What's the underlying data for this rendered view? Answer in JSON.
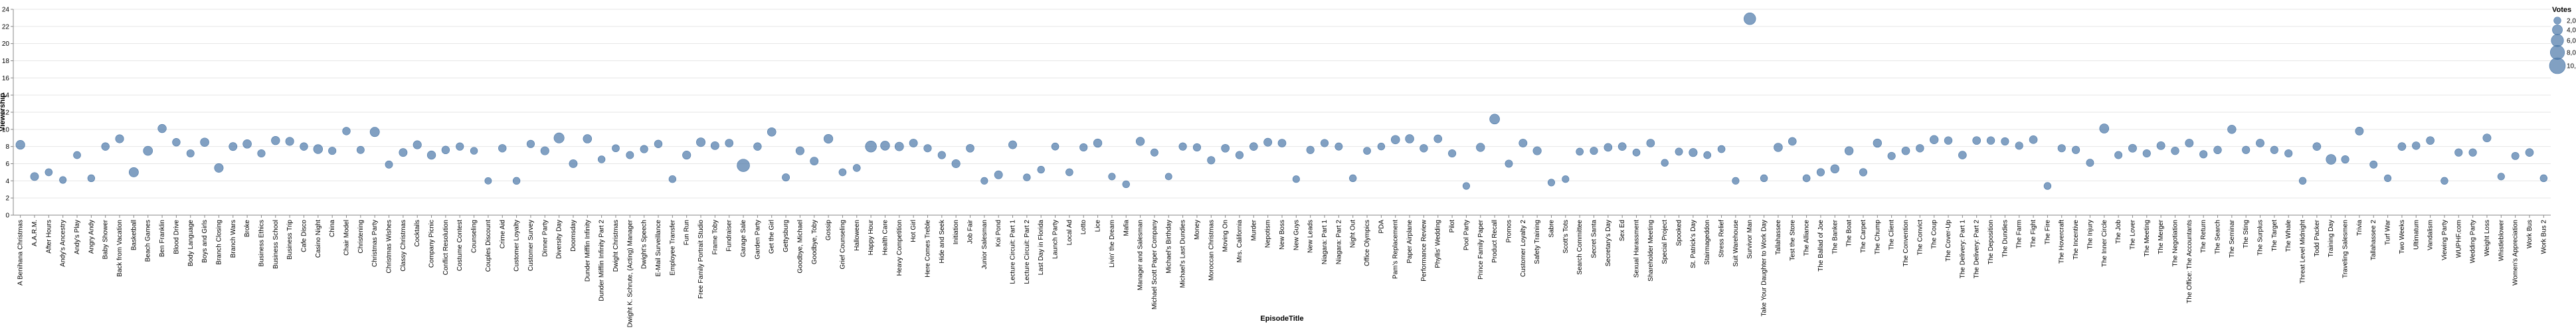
{
  "chart_data": {
    "type": "scatter",
    "xlabel": "EpisodeTitle",
    "ylabel": "Viewership",
    "ylim": [
      0,
      24
    ],
    "yticks": [
      0,
      2,
      4,
      6,
      8,
      10,
      12,
      14,
      16,
      18,
      20,
      22,
      24
    ],
    "grid": true,
    "point_color": "#4c78a8",
    "legend": {
      "title": "Votes",
      "placement": "top-right",
      "labels": [
        "2,000",
        "4,000",
        "6,000",
        "8,000",
        "10,000"
      ],
      "values": [
        2000,
        4000,
        6000,
        8000,
        10000
      ]
    },
    "points": [
      {
        "x": "A Benihana Christmas",
        "y": 8.2,
        "votes": 3200
      },
      {
        "x": "A.A.R.M.",
        "y": 4.5,
        "votes": 2600
      },
      {
        "x": "After Hours",
        "y": 5.0,
        "votes": 2100
      },
      {
        "x": "Andy's Ancestry",
        "y": 4.1,
        "votes": 1900
      },
      {
        "x": "Andy's Play",
        "y": 7.0,
        "votes": 2100
      },
      {
        "x": "Angry Andy",
        "y": 4.3,
        "votes": 2000
      },
      {
        "x": "Baby Shower",
        "y": 8.0,
        "votes": 2400
      },
      {
        "x": "Back from Vacation",
        "y": 8.9,
        "votes": 2700
      },
      {
        "x": "Basketball",
        "y": 5.0,
        "votes": 3500
      },
      {
        "x": "Beach Games",
        "y": 7.5,
        "votes": 3400
      },
      {
        "x": "Ben Franklin",
        "y": 10.1,
        "votes": 2800
      },
      {
        "x": "Blood Drive",
        "y": 8.5,
        "votes": 2400
      },
      {
        "x": "Body Language",
        "y": 7.2,
        "votes": 2200
      },
      {
        "x": "Boys and Girls",
        "y": 8.5,
        "votes": 2900
      },
      {
        "x": "Branch Closing",
        "y": 5.5,
        "votes": 3100
      },
      {
        "x": "Branch Wars",
        "y": 8.0,
        "votes": 2600
      },
      {
        "x": "Broke",
        "y": 8.3,
        "votes": 2900
      },
      {
        "x": "Business Ethics",
        "y": 7.2,
        "votes": 2300
      },
      {
        "x": "Business School",
        "y": 8.7,
        "votes": 2800
      },
      {
        "x": "Business Trip",
        "y": 8.6,
        "votes": 2700
      },
      {
        "x": "Cafe Disco",
        "y": 8.0,
        "votes": 2400
      },
      {
        "x": "Casino Night",
        "y": 7.7,
        "votes": 3300
      },
      {
        "x": "China",
        "y": 7.5,
        "votes": 2300
      },
      {
        "x": "Chair Model",
        "y": 9.8,
        "votes": 2400
      },
      {
        "x": "Christening",
        "y": 7.6,
        "votes": 2200
      },
      {
        "x": "Christmas Party",
        "y": 9.7,
        "votes": 3500
      },
      {
        "x": "Christmas Wishes",
        "y": 5.9,
        "votes": 2200
      },
      {
        "x": "Classy Christmas",
        "y": 7.3,
        "votes": 2600
      },
      {
        "x": "Cocktails",
        "y": 8.2,
        "votes": 2700
      },
      {
        "x": "Company Picnic",
        "y": 7.0,
        "votes": 2800
      },
      {
        "x": "Conflict Resolution",
        "y": 7.6,
        "votes": 2400
      },
      {
        "x": "Costume Contest",
        "y": 8.0,
        "votes": 2300
      },
      {
        "x": "Counseling",
        "y": 7.5,
        "votes": 2000
      },
      {
        "x": "Couples Discount",
        "y": 4.0,
        "votes": 1800
      },
      {
        "x": "Crime Aid",
        "y": 7.8,
        "votes": 2400
      },
      {
        "x": "Customer Loyalty",
        "y": 4.0,
        "votes": 2000
      },
      {
        "x": "Customer Survey",
        "y": 8.3,
        "votes": 2300
      },
      {
        "x": "Dinner Party",
        "y": 7.5,
        "votes": 2700
      },
      {
        "x": "Diversity Day",
        "y": 9.0,
        "votes": 4100
      },
      {
        "x": "Doomsday",
        "y": 6.0,
        "votes": 2600
      },
      {
        "x": "Dunder Mifflin Infinity",
        "y": 8.9,
        "votes": 2900
      },
      {
        "x": "Dunder Mifflin Infinity Part 2",
        "y": 6.5,
        "votes": 2000
      },
      {
        "x": "Dwight Christmas",
        "y": 7.8,
        "votes": 2100
      },
      {
        "x": "Dwight K. Schrute, (Acting) Manager",
        "y": 7.0,
        "votes": 2200
      },
      {
        "x": "Dwight's Speech",
        "y": 7.7,
        "votes": 2300
      },
      {
        "x": "E-Mail Surveillance",
        "y": 8.3,
        "votes": 2400
      },
      {
        "x": "Employee Transfer",
        "y": 4.2,
        "votes": 2000
      },
      {
        "x": "Fun Run",
        "y": 7.0,
        "votes": 2700
      },
      {
        "x": "Free Family Portrait Studio",
        "y": 8.5,
        "votes": 3100
      },
      {
        "x": "Frame Toby",
        "y": 8.1,
        "votes": 2600
      },
      {
        "x": "Fundraiser",
        "y": 8.4,
        "votes": 2500
      },
      {
        "x": "Garage Sale",
        "y": 5.8,
        "votes": 6200
      },
      {
        "x": "Garden Party",
        "y": 8.0,
        "votes": 2400
      },
      {
        "x": "Get the Girl",
        "y": 9.7,
        "votes": 2900
      },
      {
        "x": "Gettysburg",
        "y": 4.4,
        "votes": 2200
      },
      {
        "x": "Goodbye, Michael",
        "y": 7.5,
        "votes": 2700
      },
      {
        "x": "Goodbye, Toby",
        "y": 6.3,
        "votes": 2600
      },
      {
        "x": "Gossip",
        "y": 8.9,
        "votes": 3200
      },
      {
        "x": "Grief Counseling",
        "y": 5.0,
        "votes": 2100
      },
      {
        "x": "Halloween",
        "y": 5.5,
        "votes": 2100
      },
      {
        "x": "Happy Hour",
        "y": 8.0,
        "votes": 4900
      },
      {
        "x": "Health Care",
        "y": 8.1,
        "votes": 3300
      },
      {
        "x": "Heavy Competition",
        "y": 8.0,
        "votes": 3000
      },
      {
        "x": "Hot Girl",
        "y": 8.4,
        "votes": 2600
      },
      {
        "x": "Here Comes Treble",
        "y": 7.8,
        "votes": 2300
      },
      {
        "x": "Hide and Seek",
        "y": 7.0,
        "votes": 2300
      },
      {
        "x": "Initiation",
        "y": 6.0,
        "votes": 2700
      },
      {
        "x": "Job Fair",
        "y": 7.8,
        "votes": 2500
      },
      {
        "x": "Junior Salesman",
        "y": 4.0,
        "votes": 1900
      },
      {
        "x": "Koi Pond",
        "y": 4.7,
        "votes": 2600
      },
      {
        "x": "Lecture Circuit: Part 1",
        "y": 8.2,
        "votes": 2600
      },
      {
        "x": "Lecture Circuit: Part 2",
        "y": 4.4,
        "votes": 2000
      },
      {
        "x": "Last Day in Florida",
        "y": 5.3,
        "votes": 2000
      },
      {
        "x": "Launch Party",
        "y": 8.0,
        "votes": 2100
      },
      {
        "x": "Local Ad",
        "y": 5.0,
        "votes": 2100
      },
      {
        "x": "Lotto",
        "y": 7.9,
        "votes": 2300
      },
      {
        "x": "Lice",
        "y": 8.4,
        "votes": 2800
      },
      {
        "x": "Livin' the Dream",
        "y": 4.5,
        "votes": 1900
      },
      {
        "x": "Mafia",
        "y": 3.6,
        "votes": 2000
      },
      {
        "x": "Manager and Salesman",
        "y": 8.6,
        "votes": 2800
      },
      {
        "x": "Michael Scott Paper Company",
        "y": 7.3,
        "votes": 2200
      },
      {
        "x": "Michael's Birthday",
        "y": 4.5,
        "votes": 1800
      },
      {
        "x": "Michael's Last Dundies",
        "y": 8.0,
        "votes": 2300
      },
      {
        "x": "Money",
        "y": 7.9,
        "votes": 2300
      },
      {
        "x": "Moroccan Christmas",
        "y": 6.4,
        "votes": 2300
      },
      {
        "x": "Moving On",
        "y": 7.8,
        "votes": 2500
      },
      {
        "x": "Mrs. California",
        "y": 7.0,
        "votes": 2300
      },
      {
        "x": "Murder",
        "y": 8.0,
        "votes": 2500
      },
      {
        "x": "Nepotism",
        "y": 8.5,
        "votes": 2600
      },
      {
        "x": "New Boss",
        "y": 8.4,
        "votes": 2500
      },
      {
        "x": "New Guys",
        "y": 4.2,
        "votes": 1900
      },
      {
        "x": "New Leads",
        "y": 7.6,
        "votes": 2300
      },
      {
        "x": "Niagara: Part 1",
        "y": 8.4,
        "votes": 2300
      },
      {
        "x": "Niagara: Part 2",
        "y": 8.0,
        "votes": 2200
      },
      {
        "x": "Night Out",
        "y": 4.3,
        "votes": 2000
      },
      {
        "x": "Office Olympics",
        "y": 7.5,
        "votes": 2100
      },
      {
        "x": "PDA",
        "y": 8.0,
        "votes": 2000
      },
      {
        "x": "Pam's Replacement",
        "y": 8.8,
        "votes": 2900
      },
      {
        "x": "Paper Airplane",
        "y": 8.9,
        "votes": 2900
      },
      {
        "x": "Performance Review",
        "y": 7.8,
        "votes": 2400
      },
      {
        "x": "Phyllis' Wedding",
        "y": 8.9,
        "votes": 2500
      },
      {
        "x": "Pilot",
        "y": 7.2,
        "votes": 2300
      },
      {
        "x": "Pool Party",
        "y": 3.4,
        "votes": 1900
      },
      {
        "x": "Prince Family Paper",
        "y": 7.9,
        "votes": 2800
      },
      {
        "x": "Product Recall",
        "y": 11.2,
        "votes": 3900
      },
      {
        "x": "Promos",
        "y": 6.0,
        "votes": 2200
      },
      {
        "x": "Customer Loyalty 2",
        "y": 8.4,
        "votes": 2600
      },
      {
        "x": "Safety Training",
        "y": 7.5,
        "votes": 2700
      },
      {
        "x": "Sabre",
        "y": 3.8,
        "votes": 1900
      },
      {
        "x": "Scott's Tots",
        "y": 4.2,
        "votes": 1900
      },
      {
        "x": "Search Committee",
        "y": 7.4,
        "votes": 2100
      },
      {
        "x": "Secret Santa",
        "y": 7.5,
        "votes": 2300
      },
      {
        "x": "Secretary's Day",
        "y": 7.9,
        "votes": 2500
      },
      {
        "x": "Sex Ed",
        "y": 8.0,
        "votes": 2500
      },
      {
        "x": "Sexual Harassment",
        "y": 7.3,
        "votes": 2100
      },
      {
        "x": "Shareholder Meeting",
        "y": 8.4,
        "votes": 2500
      },
      {
        "x": "Special Project",
        "y": 6.1,
        "votes": 2000
      },
      {
        "x": "Spooked",
        "y": 7.4,
        "votes": 2200
      },
      {
        "x": "St. Patrick's Day",
        "y": 7.3,
        "votes": 2700
      },
      {
        "x": "Stairmageddon",
        "y": 7.0,
        "votes": 2100
      },
      {
        "x": "Stress Relief",
        "y": 7.7,
        "votes": 2100
      },
      {
        "x": "Suit Warehouse",
        "y": 4.0,
        "votes": 1900
      },
      {
        "x": "Survivor Man",
        "y": 22.9,
        "votes": 5500
      },
      {
        "x": "Take Your Daughter to Work Day",
        "y": 4.3,
        "votes": 2000
      },
      {
        "x": "Tallahassee",
        "y": 7.9,
        "votes": 2900
      },
      {
        "x": "Test the Store",
        "y": 8.6,
        "votes": 2500
      },
      {
        "x": "The Alliance",
        "y": 4.3,
        "votes": 2100
      },
      {
        "x": "The Ballad of Joe",
        "y": 5.0,
        "votes": 2300
      },
      {
        "x": "The Banker",
        "y": 5.4,
        "votes": 2800
      },
      {
        "x": "The Boat",
        "y": 7.5,
        "votes": 2800
      },
      {
        "x": "The Carpet",
        "y": 5.0,
        "votes": 2300
      },
      {
        "x": "The Chump",
        "y": 8.4,
        "votes": 2800
      },
      {
        "x": "The Client",
        "y": 6.9,
        "votes": 2300
      },
      {
        "x": "The Convention",
        "y": 7.5,
        "votes": 2500
      },
      {
        "x": "The Convict",
        "y": 7.8,
        "votes": 2400
      },
      {
        "x": "The Coup",
        "y": 8.8,
        "votes": 2800
      },
      {
        "x": "The Cover-Up",
        "y": 8.7,
        "votes": 2400
      },
      {
        "x": "The Delivery: Part 1",
        "y": 7.0,
        "votes": 2500
      },
      {
        "x": "The Delivery: Part 2",
        "y": 8.7,
        "votes": 2500
      },
      {
        "x": "The Deposition",
        "y": 8.7,
        "votes": 2400
      },
      {
        "x": "The Dundies",
        "y": 8.6,
        "votes": 2300
      },
      {
        "x": "The Farm",
        "y": 8.1,
        "votes": 2300
      },
      {
        "x": "The Fight",
        "y": 8.8,
        "votes": 2500
      },
      {
        "x": "The Fire",
        "y": 3.4,
        "votes": 2000
      },
      {
        "x": "The Hovercraft",
        "y": 7.8,
        "votes": 2300
      },
      {
        "x": "The Incentive",
        "y": 7.6,
        "votes": 2300
      },
      {
        "x": "The Injury",
        "y": 6.1,
        "votes": 2200
      },
      {
        "x": "The Inner Circle",
        "y": 10.1,
        "votes": 3400
      },
      {
        "x": "The Job",
        "y": 7.0,
        "votes": 2200
      },
      {
        "x": "The Lover",
        "y": 7.8,
        "votes": 2600
      },
      {
        "x": "The Meeting",
        "y": 7.2,
        "votes": 2300
      },
      {
        "x": "The Merger",
        "y": 8.1,
        "votes": 2600
      },
      {
        "x": "The Negotiation",
        "y": 7.5,
        "votes": 2400
      },
      {
        "x": "The Office: The Accountants",
        "y": 8.4,
        "votes": 2600
      },
      {
        "x": "The Return",
        "y": 7.1,
        "votes": 2300
      },
      {
        "x": "The Search",
        "y": 7.6,
        "votes": 2400
      },
      {
        "x": "The Seminar",
        "y": 10.0,
        "votes": 2800
      },
      {
        "x": "The Sting",
        "y": 7.6,
        "votes": 2300
      },
      {
        "x": "The Surplus",
        "y": 8.4,
        "votes": 2600
      },
      {
        "x": "The Target",
        "y": 7.6,
        "votes": 2300
      },
      {
        "x": "The Whale",
        "y": 7.2,
        "votes": 2300
      },
      {
        "x": "Threat Level Midnight",
        "y": 4.0,
        "votes": 2000
      },
      {
        "x": "Todd Packer",
        "y": 8.0,
        "votes": 2500
      },
      {
        "x": "Training Day",
        "y": 6.5,
        "votes": 3900
      },
      {
        "x": "Traveling Salesmen",
        "y": 6.5,
        "votes": 2300
      },
      {
        "x": "Trivia",
        "y": 9.8,
        "votes": 2600
      },
      {
        "x": "Tallahassee 2",
        "y": 5.9,
        "votes": 2200
      },
      {
        "x": "Turf War",
        "y": 4.3,
        "votes": 1900
      },
      {
        "x": "Two Weeks",
        "y": 8.0,
        "votes": 2500
      },
      {
        "x": "Ultimatum",
        "y": 8.1,
        "votes": 2400
      },
      {
        "x": "Vandalism",
        "y": 8.7,
        "votes": 2500
      },
      {
        "x": "Viewing Party",
        "y": 4.0,
        "votes": 2000
      },
      {
        "x": "WUPHF.com",
        "y": 7.3,
        "votes": 2300
      },
      {
        "x": "Wedding Party",
        "y": 7.3,
        "votes": 2300
      },
      {
        "x": "Weight Loss",
        "y": 9.0,
        "votes": 2600
      },
      {
        "x": "Whistleblower",
        "y": 4.5,
        "votes": 1900
      },
      {
        "x": "Women's Appreciation",
        "y": 6.9,
        "votes": 2200
      },
      {
        "x": "Work Bus",
        "y": 7.3,
        "votes": 2500
      },
      {
        "x": "Work Bus 2",
        "y": 4.3,
        "votes": 2000
      }
    ]
  }
}
